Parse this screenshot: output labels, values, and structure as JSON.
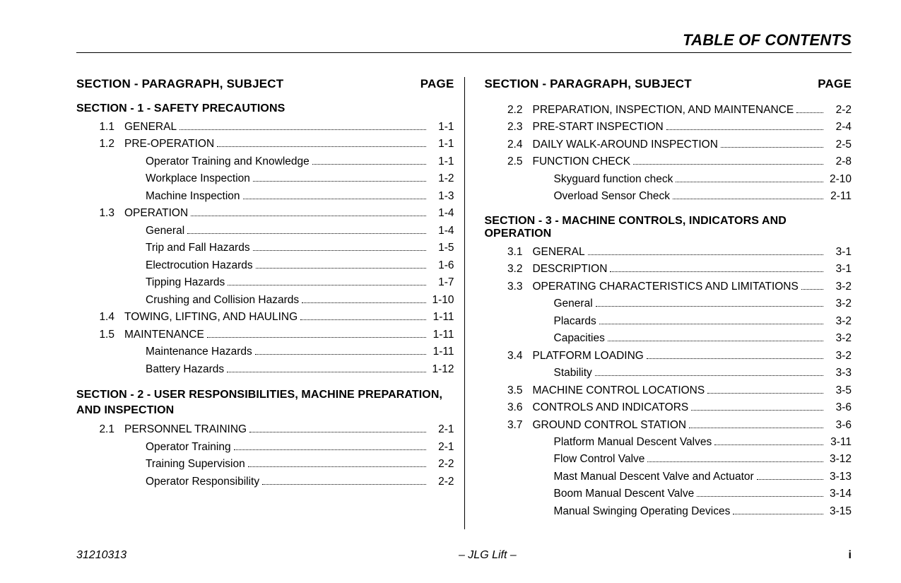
{
  "header": {
    "title": "TABLE OF CONTENTS"
  },
  "column_header": {
    "left_label": "SECTION - PARAGRAPH, SUBJECT",
    "right_label": "PAGE"
  },
  "footer": {
    "docnum": "31210313",
    "center": "–  JLG Lift  –",
    "pagenum": "i"
  },
  "left": [
    {
      "type": "section",
      "text": "SECTION - 1 - SAFETY PRECAUTIONS"
    },
    {
      "type": "entry",
      "num": "1.1",
      "label": "GENERAL",
      "page": "1-1"
    },
    {
      "type": "entry",
      "num": "1.2",
      "label": "PRE-OPERATION",
      "page": "1-1"
    },
    {
      "type": "sub",
      "label": "Operator Training and Knowledge",
      "page": "1-1"
    },
    {
      "type": "sub",
      "label": "Workplace Inspection",
      "page": "1-2"
    },
    {
      "type": "sub",
      "label": "Machine Inspection",
      "page": "1-3"
    },
    {
      "type": "entry",
      "num": "1.3",
      "label": "OPERATION",
      "page": "1-4"
    },
    {
      "type": "sub",
      "label": "General",
      "page": "1-4"
    },
    {
      "type": "sub",
      "label": "Trip and Fall Hazards",
      "page": "1-5"
    },
    {
      "type": "sub",
      "label": "Electrocution Hazards",
      "page": "1-6"
    },
    {
      "type": "sub",
      "label": "Tipping Hazards",
      "page": "1-7"
    },
    {
      "type": "sub",
      "label": "Crushing and Collision Hazards",
      "page": "1-10"
    },
    {
      "type": "entry",
      "num": "1.4",
      "label": "TOWING, LIFTING, AND HAULING",
      "page": "1-11"
    },
    {
      "type": "entry",
      "num": "1.5",
      "label": "MAINTENANCE",
      "page": "1-11"
    },
    {
      "type": "sub",
      "label": "Maintenance Hazards",
      "page": "1-11"
    },
    {
      "type": "sub",
      "label": "Battery Hazards",
      "page": "1-12"
    },
    {
      "type": "section",
      "text": "SECTION - 2 - USER RESPONSIBILITIES, MACHINE PREPARATION, AND INSPECTION",
      "wrap": true,
      "indent2": "AND INSPECTION"
    },
    {
      "type": "entry",
      "num": "2.1",
      "label": "PERSONNEL TRAINING",
      "page": "2-1"
    },
    {
      "type": "sub",
      "label": "Operator Training",
      "page": "2-1"
    },
    {
      "type": "sub",
      "label": "Training Supervision",
      "page": "2-2"
    },
    {
      "type": "sub",
      "label": "Operator Responsibility",
      "page": "2-2"
    }
  ],
  "right": [
    {
      "type": "entry",
      "num": "2.2",
      "label": "PREPARATION, INSPECTION, AND MAINTENANCE",
      "page": "2-2"
    },
    {
      "type": "entry",
      "num": "2.3",
      "label": "PRE-START INSPECTION",
      "page": "2-4"
    },
    {
      "type": "entry",
      "num": "2.4",
      "label": "DAILY WALK-AROUND INSPECTION",
      "page": "2-5"
    },
    {
      "type": "entry",
      "num": "2.5",
      "label": "FUNCTION CHECK",
      "page": "2-8"
    },
    {
      "type": "sub",
      "label": "Skyguard function check",
      "page": "2-10"
    },
    {
      "type": "sub",
      "label": "Overload Sensor Check",
      "page": "2-11"
    },
    {
      "type": "section",
      "text": "SECTION - 3 - MACHINE CONTROLS, INDICATORS AND OPERATION"
    },
    {
      "type": "entry",
      "num": "3.1",
      "label": "GENERAL",
      "page": "3-1"
    },
    {
      "type": "entry",
      "num": "3.2",
      "label": "DESCRIPTION",
      "page": "3-1"
    },
    {
      "type": "entry",
      "num": "3.3",
      "label": "OPERATING CHARACTERISTICS AND LIMITATIONS",
      "page": "3-2"
    },
    {
      "type": "sub",
      "label": "General",
      "page": "3-2"
    },
    {
      "type": "sub",
      "label": "Placards",
      "page": "3-2"
    },
    {
      "type": "sub",
      "label": "Capacities",
      "page": "3-2"
    },
    {
      "type": "entry",
      "num": "3.4",
      "label": "PLATFORM LOADING",
      "page": "3-2"
    },
    {
      "type": "sub",
      "label": "Stability",
      "page": "3-3"
    },
    {
      "type": "entry",
      "num": "3.5",
      "label": "MACHINE CONTROL LOCATIONS",
      "page": "3-5"
    },
    {
      "type": "entry",
      "num": "3.6",
      "label": "CONTROLS AND INDICATORS",
      "page": "3-6"
    },
    {
      "type": "entry",
      "num": "3.7",
      "label": "GROUND CONTROL STATION",
      "page": "3-6"
    },
    {
      "type": "sub",
      "label": "Platform Manual Descent Valves",
      "page": "3-11"
    },
    {
      "type": "sub",
      "label": "Flow Control Valve",
      "page": "3-12"
    },
    {
      "type": "sub",
      "label": "Mast Manual Descent Valve and Actuator",
      "page": "3-13"
    },
    {
      "type": "sub",
      "label": "Boom Manual Descent Valve",
      "page": "3-14"
    },
    {
      "type": "sub",
      "label": "Manual Swinging Operating Devices",
      "page": "3-15"
    }
  ]
}
